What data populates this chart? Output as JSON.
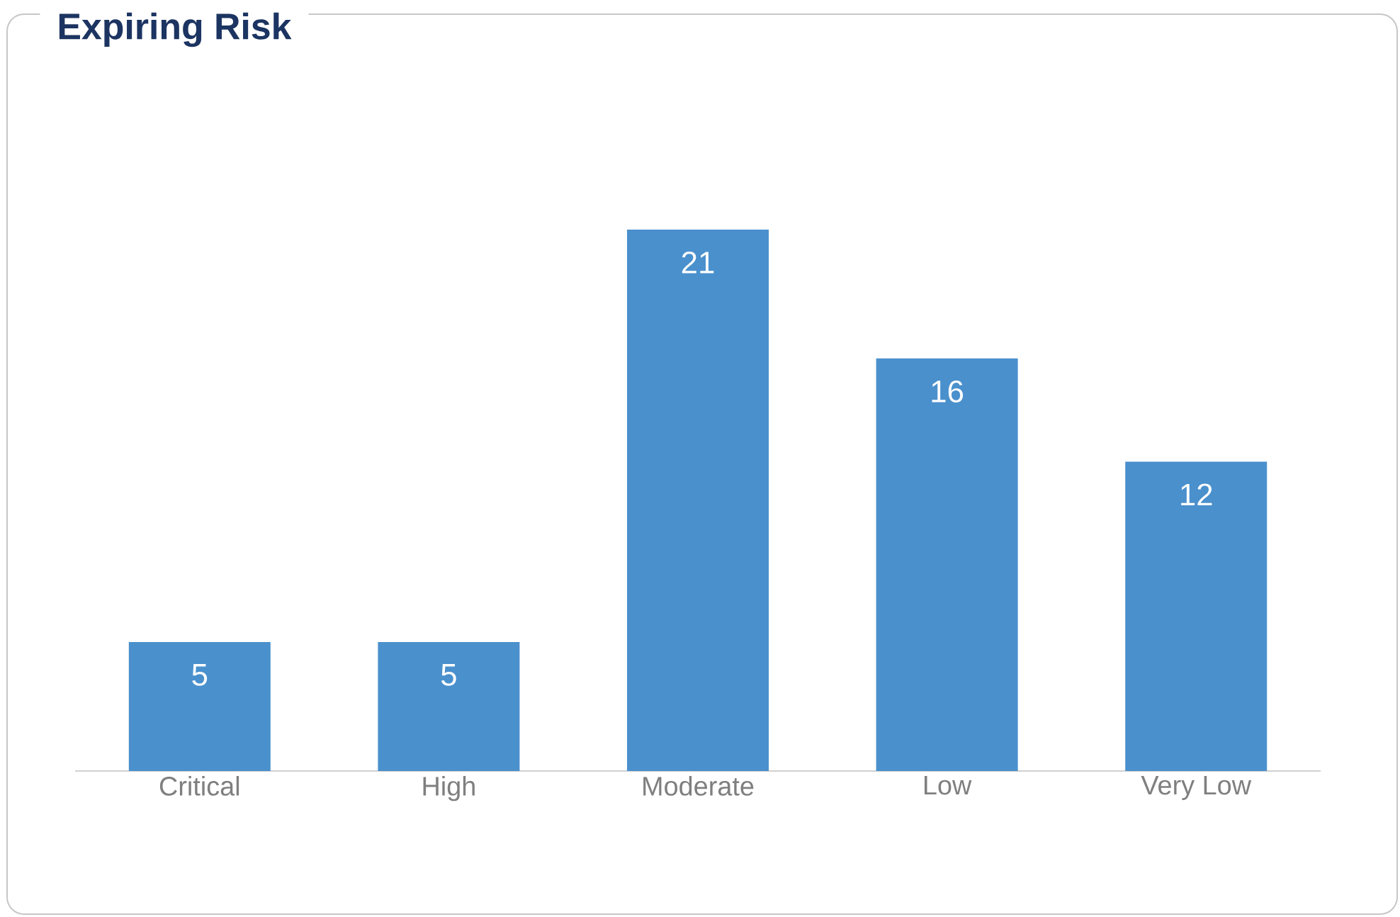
{
  "chart_data": {
    "type": "bar",
    "title": "Expiring Risk",
    "categories": [
      "Critical",
      "High",
      "Moderate",
      "Low",
      "Very Low"
    ],
    "values": [
      5,
      5,
      21,
      16,
      12
    ],
    "color": "#4a90cd",
    "data_labels": true
  }
}
